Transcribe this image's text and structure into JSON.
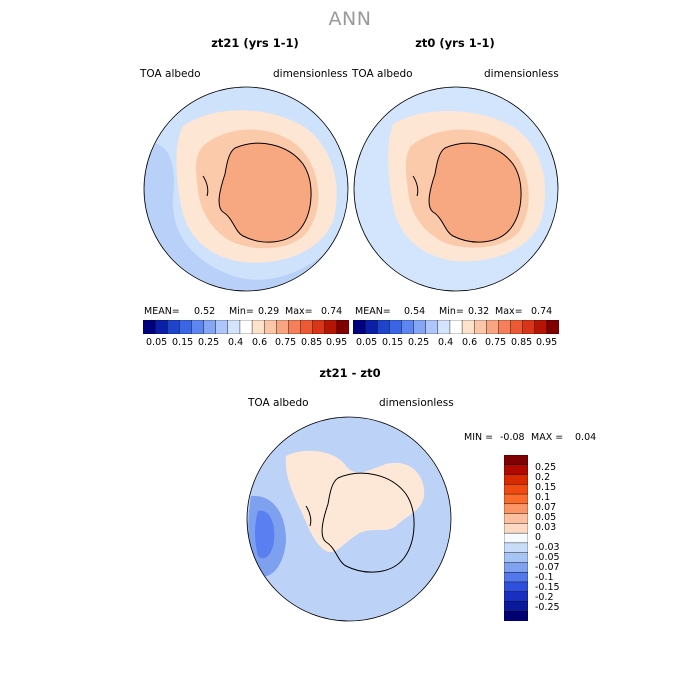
{
  "page": {
    "title": "ANN",
    "diff_title": "zt21 - zt0"
  },
  "panels": [
    {
      "title": "zt21 (yrs 1-1)",
      "variable": "TOA albedo",
      "units": "dimensionless",
      "mean_label": "MEAN=",
      "mean": "0.52",
      "min_label": "Min=",
      "min": "0.29",
      "max_label": "Max=",
      "max": "0.74"
    },
    {
      "title": "zt0 (yrs 1-1)",
      "variable": "TOA albedo",
      "units": "dimensionless",
      "mean_label": "MEAN=",
      "mean": "0.54",
      "min_label": "Min=",
      "min": "0.32",
      "max_label": "Max=",
      "max": "0.74"
    }
  ],
  "colorbar": {
    "colors": [
      "#00007f",
      "#0a1ea8",
      "#1f44cc",
      "#3a66e6",
      "#5d86f0",
      "#84a6f5",
      "#aec6fb",
      "#d4e4fd",
      "#ffffff",
      "#fde3cc",
      "#fbc7a8",
      "#f8a682",
      "#f47f5a",
      "#ec5a35",
      "#d93518",
      "#b41505",
      "#7f0000"
    ],
    "labels": [
      "0.05",
      "0.15",
      "0.25",
      "0.4",
      "0.6",
      "0.75",
      "0.85",
      "0.95"
    ]
  },
  "diff": {
    "variable": "TOA albedo",
    "units": "dimensionless",
    "min_label": "MIN =",
    "min": "-0.08",
    "max_label": "MAX =",
    "max": "0.04",
    "colors": [
      "#7f0000",
      "#b00a00",
      "#d82a00",
      "#ef4a12",
      "#fb6b2c",
      "#fb9566",
      "#fcc0a0",
      "#fdd9c4",
      "#f5fbff",
      "#c9dcf7",
      "#a6c3f5",
      "#7fa1f0",
      "#5278ec",
      "#2e50dd",
      "#1a2fbf",
      "#0a1a9a",
      "#000070"
    ],
    "labels": [
      "0.25",
      "0.2",
      "0.15",
      "0.1",
      "0.07",
      "0.05",
      "0.03",
      "0",
      "-0.03",
      "-0.05",
      "-0.07",
      "-0.1",
      "-0.15",
      "-0.2",
      "-0.25"
    ]
  }
}
